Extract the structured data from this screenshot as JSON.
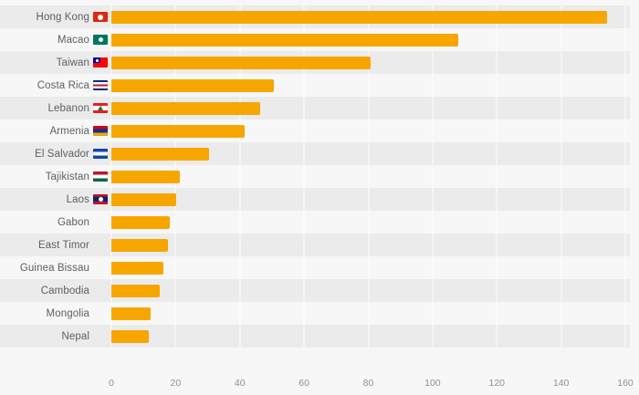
{
  "chart_data": {
    "type": "bar",
    "orientation": "horizontal",
    "title": "",
    "xlabel": "",
    "ylabel": "",
    "xlim": [
      0,
      160
    ],
    "x_ticks": [
      "0",
      "20",
      "40",
      "60",
      "80",
      "100",
      "120",
      "140",
      "160"
    ],
    "grid": "vertical",
    "legend": "none",
    "bar_color": "#f7a600",
    "row_stripe_color": "#ebebeb",
    "background_color": "#f7f7f7",
    "categories": [
      "Hong Kong",
      "Macao",
      "Taiwan",
      "Costa Rica",
      "Lebanon",
      "Armenia",
      "El Salvador",
      "Tajikistan",
      "Laos",
      "Gabon",
      "East Timor",
      "Guinea Bissau",
      "Cambodia",
      "Mongolia",
      "Nepal"
    ],
    "values": [
      153,
      107,
      80,
      50,
      46,
      41,
      30,
      21,
      20,
      18,
      17.5,
      16,
      15,
      12,
      11.5
    ],
    "flags": [
      "hong-kong",
      "macao",
      "taiwan",
      "costa-rica",
      "lebanon",
      "armenia",
      "el-salvador",
      "tajikistan",
      "laos",
      null,
      null,
      null,
      null,
      null,
      null
    ]
  }
}
